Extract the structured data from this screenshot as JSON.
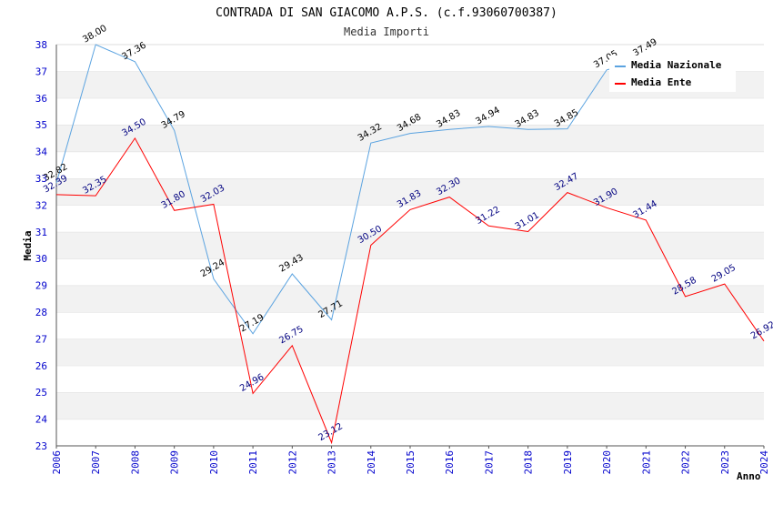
{
  "chart_data": {
    "type": "line",
    "title": "CONTRADA DI SAN GIACOMO A.P.S. (c.f.93060700387)",
    "subtitle": "Media Importi",
    "xlabel": "Anno",
    "ylabel": "Media",
    "ylim": [
      23,
      38
    ],
    "yticks": [
      23,
      24,
      25,
      26,
      27,
      28,
      29,
      30,
      31,
      32,
      33,
      34,
      35,
      36,
      37,
      38
    ],
    "x": [
      "2006",
      "2007",
      "2008",
      "2009",
      "2010",
      "2011",
      "2012",
      "2013",
      "2014",
      "2015",
      "2016",
      "2017",
      "2018",
      "2019",
      "2020",
      "2021",
      "2022",
      "2023",
      "2024"
    ],
    "grid": "horizontal bands",
    "legend_position": "top-right",
    "series": [
      {
        "name": "Media Nazionale",
        "color": "#5ba3e0",
        "values": [
          32.82,
          38.0,
          37.36,
          34.79,
          29.24,
          27.19,
          29.43,
          27.71,
          34.32,
          34.68,
          34.83,
          34.94,
          34.83,
          34.85,
          37.05,
          37.49,
          null,
          null,
          null
        ],
        "labels": [
          "32.82",
          "38.00",
          "37.36",
          "34.79",
          "29.24",
          "27.19",
          "29.43",
          "27.71",
          "34.32",
          "34.68",
          "34.83",
          "34.94",
          "34.83",
          "34.85",
          "37.05",
          "37.49",
          null,
          null,
          null
        ]
      },
      {
        "name": "Media Ente",
        "color": "#ff0000",
        "values": [
          32.39,
          32.35,
          34.5,
          31.8,
          32.03,
          24.96,
          26.75,
          23.12,
          30.5,
          31.83,
          32.3,
          31.22,
          31.01,
          32.47,
          31.9,
          31.44,
          28.58,
          29.05,
          26.92
        ],
        "labels": [
          "32.39",
          "32.35",
          "34.50",
          "31.80",
          "32.03",
          "24.96",
          "26.75",
          "23.12",
          "30.50",
          "31.83",
          "32.30",
          "31.22",
          "31.01",
          "32.47",
          "31.90",
          "31.44",
          "28.58",
          "29.05",
          "26.92"
        ]
      }
    ]
  }
}
